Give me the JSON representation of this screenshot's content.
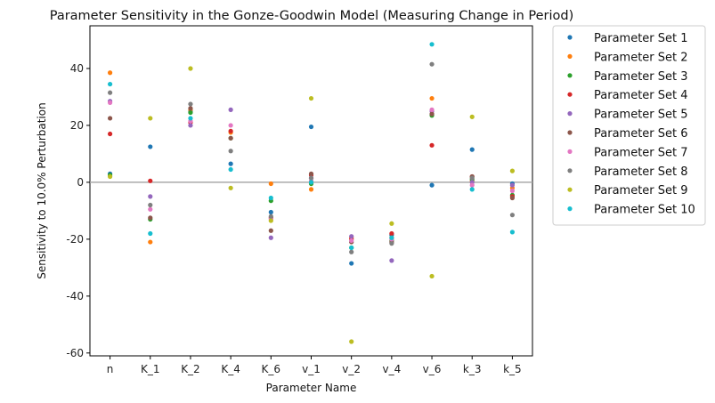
{
  "chart_data": {
    "type": "scatter",
    "title": "Parameter Sensitivity in the Gonze-Goodwin Model (Measuring Change in Period)",
    "xlabel": "Parameter Name",
    "ylabel": "Sensitivity to 10.0% Perturbation",
    "categories": [
      "n",
      "K_1",
      "K_2",
      "K_4",
      "K_6",
      "v_1",
      "v_2",
      "v_4",
      "v_6",
      "k_3",
      "k_5"
    ],
    "ylim": [
      -61,
      55
    ],
    "yticks": [
      -60,
      -40,
      -20,
      0,
      20,
      40
    ],
    "reference_line_y": 0,
    "grid": false,
    "legend_position": "outside-right",
    "series": [
      {
        "name": "Parameter Set 1",
        "color": "#1f77b4",
        "values": [
          3,
          12.5,
          25,
          6.5,
          -10.5,
          19.5,
          -28.5,
          -18.5,
          -1,
          11.5,
          -0.5
        ]
      },
      {
        "name": "Parameter Set 2",
        "color": "#ff7f0e",
        "values": [
          38.5,
          -21,
          25.5,
          17.5,
          -0.5,
          -2.5,
          -19.5,
          -19.5,
          29.5,
          0.5,
          -2
        ]
      },
      {
        "name": "Parameter Set 3",
        "color": "#2ca02c",
        "values": [
          2.5,
          -13,
          24.5,
          15.5,
          -6.5,
          -0.5,
          -23,
          -20.5,
          23.5,
          1,
          -4.5
        ]
      },
      {
        "name": "Parameter Set 4",
        "color": "#d62728",
        "values": [
          17,
          0.5,
          21,
          18,
          -12.5,
          2.5,
          -20,
          -18,
          13,
          2,
          -5
        ]
      },
      {
        "name": "Parameter Set 5",
        "color": "#9467bd",
        "values": [
          28.5,
          -5,
          20,
          25.5,
          -19.5,
          1.5,
          -19,
          -27.5,
          25,
          0,
          -1
        ]
      },
      {
        "name": "Parameter Set 6",
        "color": "#8c564b",
        "values": [
          22.5,
          -12.5,
          26,
          15.5,
          -17,
          3,
          -21,
          -21,
          24,
          2,
          -5.5
        ]
      },
      {
        "name": "Parameter Set 7",
        "color": "#e377c2",
        "values": [
          28,
          -9.5,
          21.5,
          20,
          -13,
          0.5,
          -20.5,
          -20,
          25.5,
          -1,
          -3
        ]
      },
      {
        "name": "Parameter Set 8",
        "color": "#7f7f7f",
        "values": [
          31.5,
          -8,
          27.5,
          11,
          -12,
          1.5,
          -24.5,
          -21.5,
          41.5,
          1.5,
          -11.5
        ]
      },
      {
        "name": "Parameter Set 9",
        "color": "#bcbd22",
        "values": [
          2,
          22.5,
          40,
          -2,
          -13.5,
          29.5,
          -56,
          -14.5,
          -33,
          23,
          4
        ]
      },
      {
        "name": "Parameter Set 10",
        "color": "#17becf",
        "values": [
          34.5,
          -18,
          22.5,
          4.5,
          -5.5,
          0,
          -23,
          -19.5,
          48.5,
          -2.5,
          -17.5
        ]
      }
    ]
  }
}
